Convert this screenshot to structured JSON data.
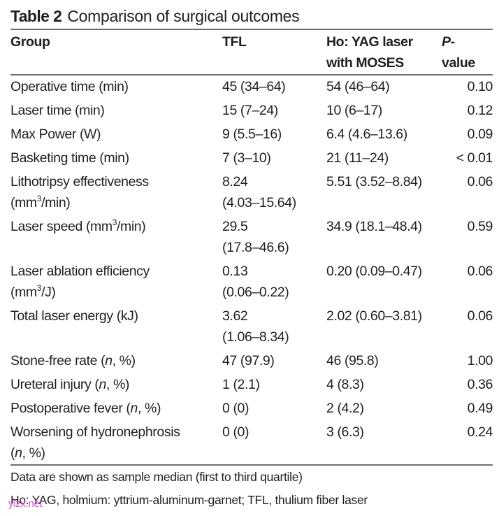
{
  "title": {
    "label": "Table 2",
    "text": "Comparison of surgical outcomes"
  },
  "columns": {
    "group": "Group",
    "tfl": "TFL",
    "ho_line1": "Ho: YAG laser",
    "ho_line2": "with MOSES",
    "p_line1": "P",
    "p_dash": "-",
    "p_line2": "value"
  },
  "rows": [
    {
      "label": "Operative time (min)",
      "label2": "",
      "tfl": "45 (34–64)",
      "tfl2": "",
      "ho": "54 (46–64)",
      "p": "0.10"
    },
    {
      "label": "Laser time (min)",
      "label2": "",
      "tfl": "15 (7–24)",
      "tfl2": "",
      "ho": "10 (6–17)",
      "p": "0.12"
    },
    {
      "label": "Max Power (W)",
      "label2": "",
      "tfl": "9 (5.5–16)",
      "tfl2": "",
      "ho": "6.4 (4.6–13.6)",
      "p": "0.09"
    },
    {
      "label": "Basketing time (min)",
      "label2": "",
      "tfl": "7 (3–10)",
      "tfl2": "",
      "ho": "21 (11–24)",
      "p": "< 0.01"
    },
    {
      "label": "Lithotripsy effectiveness",
      "label2_pre": "(mm",
      "label2_sup": "3",
      "label2_post": "/min)",
      "tfl": "8.24",
      "tfl2": "(4.03–15.64)",
      "ho": "5.51 (3.52–8.84)",
      "p": "0.06"
    },
    {
      "label_pre": "Laser speed (mm",
      "label_sup": "3",
      "label_post": "/min)",
      "tfl": "29.5",
      "tfl2": "(17.8–46.6)",
      "ho": "34.9 (18.1–48.4)",
      "p": "0.59"
    },
    {
      "label": "Laser ablation efficiency",
      "label2_pre": "(mm",
      "label2_sup": "3",
      "label2_post": "/J)",
      "tfl": "0.13",
      "tfl2": "(0.06–0.22)",
      "ho": "0.20 (0.09–0.47)",
      "p": "0.06"
    },
    {
      "label": "Total laser energy (kJ)",
      "tfl": "3.62",
      "tfl2": "(1.06–8.34)",
      "ho": "2.02 (0.60–3.81)",
      "p": "0.06"
    },
    {
      "label_pre": "Stone-free rate (",
      "label_n": "n",
      "label_post": ", %)",
      "tfl": "47 (97.9)",
      "ho": "46 (95.8)",
      "p": "1.00"
    },
    {
      "label_pre": "Ureteral injury (",
      "label_n": "n",
      "label_post": ", %)",
      "tfl": "1 (2.1)",
      "ho": "4 (8.3)",
      "p": "0.36"
    },
    {
      "label_pre": "Postoperative fever (",
      "label_n": "n",
      "label_post": ", %)",
      "tfl": "0 (0)",
      "ho": "2 (4.2)",
      "p": "0.49"
    },
    {
      "label": "Worsening of hydronephrosis",
      "label2_pre": "(",
      "label2_n": "n",
      "label2_post": ", %)",
      "tfl": "0 (0)",
      "ho": "3 (6.3)",
      "p": "0.24"
    }
  ],
  "footnotes": [
    "Data are shown as sample median (first to third quartile)",
    "Ho: YAG, holmium: yttrium-aluminum-garnet; TFL, thulium fiber laser"
  ],
  "watermark": "ylzx.net"
}
